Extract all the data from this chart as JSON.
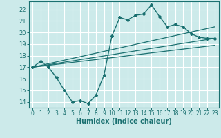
{
  "xlabel": "Humidex (Indice chaleur)",
  "bg_color": "#cceaea",
  "grid_color": "#ffffff",
  "line_color": "#1a7070",
  "xlim": [
    -0.5,
    23.5
  ],
  "ylim": [
    13.5,
    22.7
  ],
  "xticks": [
    0,
    1,
    2,
    3,
    4,
    5,
    6,
    7,
    8,
    9,
    10,
    11,
    12,
    13,
    14,
    15,
    16,
    17,
    18,
    19,
    20,
    21,
    22,
    23
  ],
  "yticks": [
    14,
    15,
    16,
    17,
    18,
    19,
    20,
    21,
    22
  ],
  "main_x": [
    0,
    1,
    2,
    3,
    4,
    5,
    6,
    7,
    8,
    9,
    10,
    11,
    12,
    13,
    14,
    15,
    16,
    17,
    18,
    19,
    20,
    21,
    22,
    23
  ],
  "main_y": [
    17.0,
    17.5,
    17.0,
    16.1,
    15.0,
    14.0,
    14.1,
    13.85,
    14.6,
    16.3,
    19.7,
    21.3,
    21.1,
    21.5,
    21.6,
    22.4,
    21.4,
    20.5,
    20.7,
    20.5,
    19.9,
    19.6,
    19.5,
    19.5
  ],
  "line1_x": [
    0,
    23
  ],
  "line1_y": [
    17.0,
    20.5
  ],
  "line2_x": [
    0,
    23
  ],
  "line2_y": [
    17.0,
    19.5
  ],
  "line3_x": [
    0,
    23
  ],
  "line3_y": [
    17.0,
    18.9
  ]
}
